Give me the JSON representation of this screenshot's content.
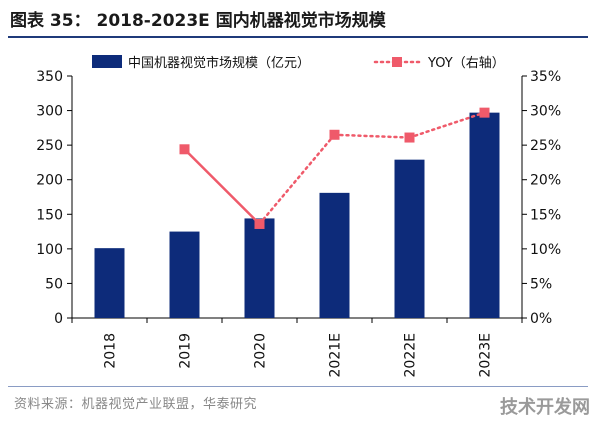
{
  "figure": {
    "title": "图表 35： 2018-2023E 国内机器视觉市场规模",
    "source": "资料来源：机器视觉产业联盟，华泰研究",
    "watermark": "技术开发网"
  },
  "chart_data": {
    "type": "bar",
    "title": "",
    "xlabel": "",
    "ylabel": "",
    "categories": [
      "2018",
      "2019",
      "2020",
      "2021E",
      "2022E",
      "2023E"
    ],
    "series": [
      {
        "name": "中国机器视觉市场规模（亿元）",
        "type": "bar",
        "axis": "left",
        "color": "#0d2b7a",
        "values": [
          101,
          125,
          144,
          181,
          229,
          297
        ]
      },
      {
        "name": "YOY（右轴）",
        "type": "line",
        "axis": "right",
        "color": "#ef5a6a",
        "values": [
          null,
          24.4,
          13.6,
          26.5,
          26.1,
          29.7
        ],
        "segment_styles": [
          "solid",
          "dotted",
          "dotted",
          "dotted"
        ]
      }
    ],
    "ylim": [
      0,
      350
    ],
    "yticks": [
      "0",
      "50",
      "100",
      "150",
      "200",
      "250",
      "300",
      "350"
    ],
    "y2lim": [
      0,
      35
    ],
    "y2ticks": [
      "0%",
      "5%",
      "10%",
      "15%",
      "20%",
      "25%",
      "30%",
      "35%"
    ],
    "legend": "top",
    "grid": false
  }
}
